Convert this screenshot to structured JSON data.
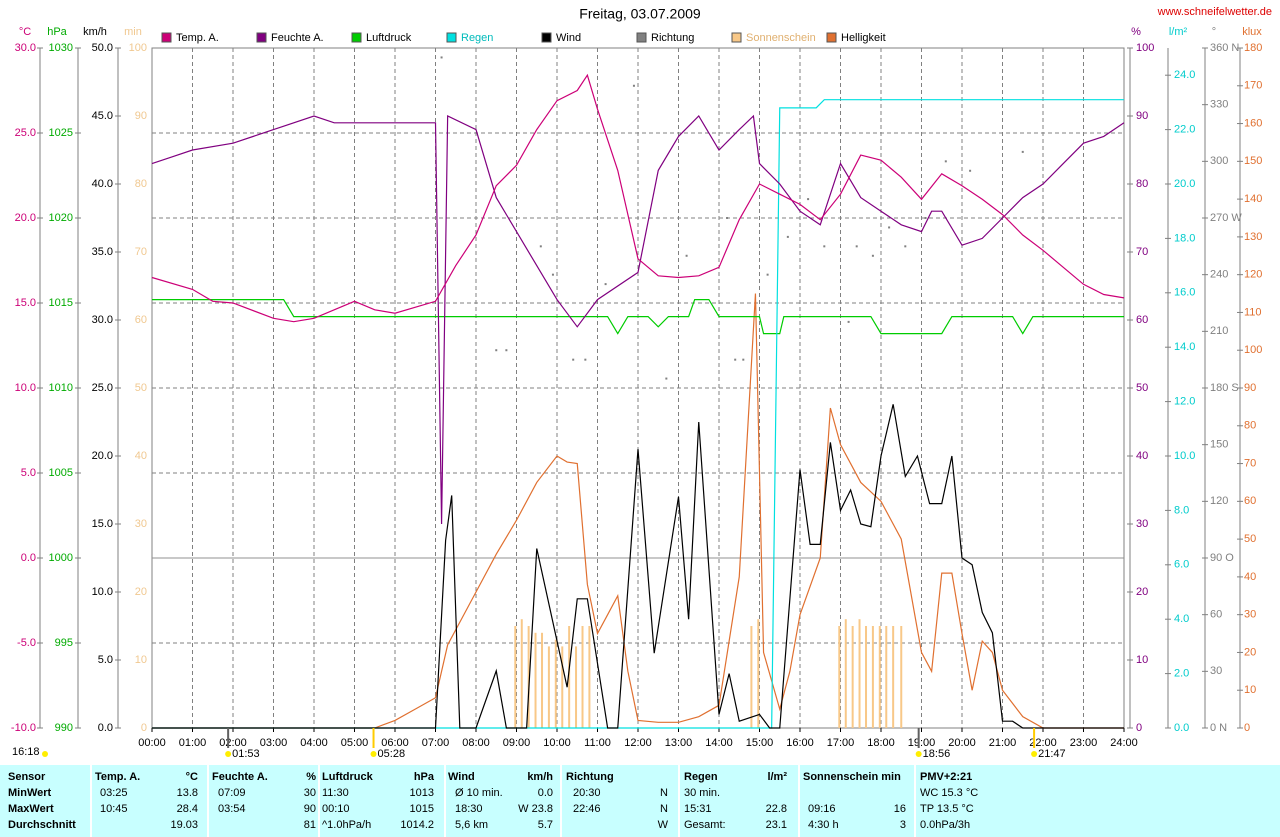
{
  "chart_data": {
    "type": "line",
    "title": "Freitag, 03.07.2009",
    "source": "www.schneifelwetter.de",
    "xlim": [
      0,
      24
    ],
    "xticks": [
      {
        "value": 0,
        "label": "00:00"
      },
      {
        "value": 1,
        "label": "01:00"
      },
      {
        "value": 2,
        "label": "02:00"
      },
      {
        "value": 3,
        "label": "03:00"
      },
      {
        "value": 4,
        "label": "04:00"
      },
      {
        "value": 5,
        "label": "05:00"
      },
      {
        "value": 6,
        "label": "06:00"
      },
      {
        "value": 7,
        "label": "07:00"
      },
      {
        "value": 8,
        "label": "08:00"
      },
      {
        "value": 9,
        "label": "09:00"
      },
      {
        "value": 10,
        "label": "10:00"
      },
      {
        "value": 11,
        "label": "11:00"
      },
      {
        "value": 12,
        "label": "12:00"
      },
      {
        "value": 13,
        "label": "13:00"
      },
      {
        "value": 14,
        "label": "14:00"
      },
      {
        "value": 15,
        "label": "15:00"
      },
      {
        "value": 16,
        "label": "16:00"
      },
      {
        "value": 17,
        "label": "17:00"
      },
      {
        "value": 18,
        "label": "18:00"
      },
      {
        "value": 19,
        "label": "19:00"
      },
      {
        "value": 20,
        "label": "20:00"
      },
      {
        "value": 21,
        "label": "21:00"
      },
      {
        "value": 22,
        "label": "22:00"
      },
      {
        "value": 23,
        "label": "23:00"
      },
      {
        "value": 24,
        "label": "24:00"
      }
    ],
    "grid": true,
    "axes": [
      {
        "label": "°C",
        "color": "#cc0077",
        "ylim": [
          -10,
          30
        ],
        "yticks": [
          {
            "value": -10,
            "label": "-10.0"
          },
          {
            "value": -5,
            "label": "-5.0"
          },
          {
            "value": 0,
            "label": "0.0"
          },
          {
            "value": 5,
            "label": "5.0"
          },
          {
            "value": 10,
            "label": "10.0"
          },
          {
            "value": 15,
            "label": "15.0"
          },
          {
            "value": 20,
            "label": "20.0"
          },
          {
            "value": 25,
            "label": "25.0"
          },
          {
            "value": 30,
            "label": "30.0"
          }
        ]
      },
      {
        "label": "hPa",
        "color": "#00aa00",
        "ylim": [
          990,
          1030
        ],
        "yticks": [
          990,
          995,
          1000,
          1005,
          1010,
          1015,
          1020,
          1025,
          1030
        ]
      },
      {
        "label": "km/h",
        "color": "#000000",
        "ylim": [
          0,
          50
        ],
        "yticks": [
          {
            "value": 0,
            "label": "0.0"
          },
          {
            "value": 5,
            "label": "5.0"
          },
          {
            "value": 10,
            "label": "10.0"
          },
          {
            "value": 15,
            "label": "15.0"
          },
          {
            "value": 20,
            "label": "20.0"
          },
          {
            "value": 25,
            "label": "25.0"
          },
          {
            "value": 30,
            "label": "30.0"
          },
          {
            "value": 35,
            "label": "35.0"
          },
          {
            "value": 40,
            "label": "40.0"
          },
          {
            "value": 45,
            "label": "45.0"
          },
          {
            "value": 50,
            "label": "50.0"
          }
        ]
      },
      {
        "label": "min",
        "color": "#f0c890",
        "ylim": [
          0,
          100
        ],
        "yticks": [
          0,
          10,
          20,
          30,
          40,
          50,
          60,
          70,
          80,
          90,
          100
        ]
      },
      {
        "label": "%",
        "color": "#800080",
        "ylim": [
          0,
          100
        ],
        "yticks": [
          0,
          10,
          20,
          30,
          40,
          50,
          60,
          70,
          80,
          90,
          100
        ]
      },
      {
        "label": "l/m²",
        "color": "#00cccc",
        "ylim": [
          0,
          25
        ],
        "yticks": [
          {
            "value": 0,
            "label": "0.0"
          },
          {
            "value": 2,
            "label": "2.0"
          },
          {
            "value": 4,
            "label": "4.0"
          },
          {
            "value": 6,
            "label": "6.0"
          },
          {
            "value": 8,
            "label": "8.0"
          },
          {
            "value": 10,
            "label": "10.0"
          },
          {
            "value": 12,
            "label": "12.0"
          },
          {
            "value": 14,
            "label": "14.0"
          },
          {
            "value": 16,
            "label": "16.0"
          },
          {
            "value": 18,
            "label": "18.0"
          },
          {
            "value": 20,
            "label": "20.0"
          },
          {
            "value": 22,
            "label": "22.0"
          },
          {
            "value": 24,
            "label": "24.0"
          }
        ]
      },
      {
        "label": "°",
        "color": "#808080",
        "ylim": [
          0,
          360
        ],
        "yticks": [
          {
            "value": 0,
            "label": "0 N"
          },
          30,
          60,
          {
            "value": 90,
            "label": "90 O"
          },
          120,
          150,
          {
            "value": 180,
            "label": "180 S"
          },
          210,
          240,
          {
            "value": 270,
            "label": "270 W"
          },
          300,
          330,
          {
            "value": 360,
            "label": "360 N"
          }
        ]
      },
      {
        "label": "klux",
        "color": "#e07030",
        "ylim": [
          0,
          180
        ],
        "yticks": [
          0,
          10,
          20,
          30,
          40,
          50,
          60,
          70,
          80,
          90,
          100,
          110,
          120,
          130,
          140,
          150,
          160,
          170,
          180
        ]
      }
    ],
    "series": [
      {
        "name": "Temp. A.",
        "color": "#cc0077",
        "axis": 0,
        "style": "line",
        "x": [
          0,
          1,
          1.5,
          2,
          3,
          3.5,
          4,
          5,
          5.5,
          6,
          7,
          7.5,
          8,
          8.5,
          9,
          9.5,
          10,
          10.5,
          10.75,
          11,
          11.5,
          12,
          12.5,
          13,
          13.5,
          14,
          14.5,
          15,
          15.5,
          16,
          16.5,
          17,
          17.5,
          18,
          18.5,
          19,
          19.5,
          20,
          20.5,
          21,
          21.5,
          22,
          22.5,
          23,
          23.5,
          24
        ],
        "values": [
          16.5,
          15.8,
          15.1,
          15.0,
          14.1,
          13.9,
          14.1,
          15.1,
          14.6,
          14.4,
          15.1,
          17.2,
          19.0,
          21.9,
          23.1,
          25.2,
          26.9,
          27.5,
          28.4,
          26.4,
          22.8,
          17.6,
          16.6,
          16.5,
          16.6,
          17.1,
          19.9,
          22.0,
          21.4,
          20.8,
          19.9,
          21.4,
          23.7,
          23.4,
          22.4,
          21.1,
          22.6,
          21.9,
          21.1,
          20.2,
          19.0,
          18.1,
          17.1,
          16.1,
          15.5,
          15.3
        ]
      },
      {
        "name": "Feuchte A.",
        "color": "#800080",
        "axis": 4,
        "style": "line",
        "x": [
          0,
          0.5,
          1,
          2,
          3,
          4,
          4.5,
          5,
          7,
          7.15,
          7.3,
          8,
          8.5,
          9,
          9.5,
          10,
          10.5,
          11,
          12,
          12.5,
          13,
          13.5,
          14,
          14.5,
          14.85,
          15,
          15.5,
          16,
          16.5,
          17,
          17.5,
          18,
          18.5,
          19,
          19.25,
          19.5,
          20,
          20.5,
          21,
          21.5,
          22,
          22.5,
          23,
          23.5,
          24
        ],
        "values": [
          83,
          84,
          85,
          86,
          88,
          90,
          89,
          89,
          89,
          30,
          90,
          88,
          78,
          73,
          68,
          63,
          59,
          63,
          67,
          82,
          87,
          90,
          85,
          88,
          90,
          83,
          80,
          76,
          74,
          83,
          78,
          76,
          74,
          73,
          76,
          76,
          71,
          72,
          75,
          78,
          80,
          83,
          86,
          87,
          89
        ]
      },
      {
        "name": "Luftdruck",
        "color": "#00cc00",
        "axis": 1,
        "style": "line",
        "x": [
          0,
          3.25,
          3.5,
          11.25,
          11.5,
          11.75,
          12.25,
          12.5,
          12.75,
          13.25,
          13.4,
          13.75,
          14,
          15,
          15.1,
          15.5,
          15.6,
          17.75,
          18,
          19.5,
          19.75,
          21.25,
          21.5,
          21.75,
          24
        ],
        "values": [
          1015.2,
          1015.2,
          1014.2,
          1014.2,
          1013.2,
          1014.2,
          1014.2,
          1013.6,
          1014.2,
          1014.2,
          1015.2,
          1015.2,
          1014.2,
          1014.2,
          1013.2,
          1013.2,
          1014.2,
          1014.2,
          1013.2,
          1013.2,
          1014.2,
          1014.2,
          1013.2,
          1014.2,
          1014.2
        ]
      },
      {
        "name": "Regen",
        "color": "#00e0e0",
        "axis": 5,
        "style": "line",
        "x": [
          0,
          15.3,
          15.5,
          16.4,
          16.6,
          24
        ],
        "values": [
          0,
          0,
          22.8,
          22.8,
          23.1,
          23.1
        ]
      },
      {
        "name": "Wind",
        "color": "#000000",
        "axis": 2,
        "style": "line",
        "x": [
          0,
          7,
          7.25,
          7.4,
          7.6,
          8,
          8.5,
          8.75,
          9.25,
          9.5,
          10.25,
          10.5,
          10.75,
          11.25,
          11.5,
          12,
          12.4,
          13,
          13.25,
          13.5,
          14,
          14.25,
          14.5,
          15,
          15.25,
          15.5,
          16,
          16.25,
          16.5,
          16.75,
          17,
          17.25,
          17.5,
          17.75,
          18,
          18.3,
          18.6,
          18.9,
          19.2,
          19.5,
          19.75,
          20,
          20.25,
          20.5,
          20.75,
          21,
          21.25,
          21.5,
          24
        ],
        "values": [
          0,
          0,
          13.8,
          17.1,
          0,
          0,
          4.2,
          0,
          0,
          13.2,
          3,
          9.5,
          9.5,
          0,
          0,
          20.5,
          5.5,
          17,
          8,
          22.5,
          1,
          4,
          0.5,
          1,
          0,
          0,
          19,
          13.5,
          13.5,
          21,
          16,
          17.5,
          15,
          14.8,
          20,
          23.8,
          18.5,
          20,
          16.5,
          16.5,
          20,
          12.5,
          12,
          8.5,
          7,
          0.5,
          0.5,
          0,
          0
        ]
      },
      {
        "name": "Richtung",
        "color": "#808080",
        "axis": 6,
        "style": "dots",
        "x": [
          7.15,
          8.5,
          8.75,
          9.6,
          9.9,
          10.4,
          10.7,
          11.2,
          11.9,
          12.7,
          13.2,
          14.2,
          14.4,
          14.6,
          15.2,
          15.7,
          16.2,
          16.6,
          17.2,
          17.4,
          17.8,
          18.2,
          18.6,
          19.1,
          19.6,
          20.2,
          21,
          21.5
        ],
        "values": [
          355,
          200,
          200,
          255,
          240,
          195,
          195,
          235,
          340,
          185,
          250,
          270,
          195,
          195,
          240,
          260,
          280,
          255,
          215,
          255,
          250,
          265,
          255,
          270,
          300,
          295,
          5,
          305
        ]
      },
      {
        "name": "Sonnenschein",
        "color": "#f8c888",
        "axis": 3,
        "style": "bars",
        "x": [
          8.97,
          9.13,
          9.3,
          9.47,
          9.63,
          9.8,
          9.97,
          10.13,
          10.3,
          10.47,
          10.63,
          10.8,
          14.8,
          14.97,
          16.97,
          17.13,
          17.3,
          17.47,
          17.63,
          17.8,
          17.97,
          18.13,
          18.3,
          18.5
        ],
        "values": [
          15,
          16,
          15,
          14,
          14,
          12,
          13,
          12,
          15,
          12,
          15,
          15,
          15,
          16,
          15,
          16,
          15,
          16,
          15,
          15,
          15,
          15,
          15,
          15
        ]
      },
      {
        "name": "Helligkeit",
        "color": "#e07030",
        "axis": 7,
        "style": "line",
        "x": [
          0,
          5.5,
          6,
          6.5,
          7,
          7.3,
          7.6,
          8,
          8.5,
          9,
          9.5,
          10,
          10.25,
          10.5,
          10.75,
          11,
          11.25,
          11.5,
          11.75,
          12,
          12.5,
          13,
          13.5,
          14,
          14.5,
          14.9,
          15.1,
          15.5,
          15.75,
          16,
          16.5,
          16.75,
          17,
          17.5,
          18,
          18.5,
          19,
          19.25,
          19.5,
          19.75,
          20,
          20.25,
          20.5,
          20.75,
          21,
          21.5,
          22,
          24
        ],
        "values": [
          0,
          0,
          2,
          5,
          8,
          22,
          28,
          36,
          46,
          55,
          65,
          72,
          70.4,
          70,
          38,
          25,
          30,
          35,
          15,
          2,
          1.5,
          1.5,
          3,
          6,
          40,
          115,
          20,
          5,
          15,
          30,
          45,
          84.7,
          75,
          65,
          60,
          50,
          20,
          15,
          41,
          41,
          25,
          10,
          23,
          20,
          10,
          3,
          0,
          0
        ]
      }
    ],
    "annotations": [
      {
        "text": "01:53",
        "x": 1.88
      },
      {
        "text": "05:28",
        "x": 5.47
      },
      {
        "text": "18:56",
        "x": 18.93
      },
      {
        "text": "21:47",
        "x": 21.78
      }
    ],
    "moonrise": "16:18"
  },
  "table": {
    "header": [
      "Sensor",
      "Temp. A.",
      "°C",
      "Feuchte A.",
      "%",
      "Luftdruck",
      "hPa",
      "Wind",
      "km/h",
      "Richtung",
      "Regen",
      "l/m²",
      "Sonnenschein min",
      "PMV+2:21"
    ],
    "rows": [
      [
        "MinWert",
        "03:25",
        "13.8",
        "07:09",
        "30",
        "11:30",
        "1013",
        "Ø 10 min.",
        "0.0",
        "20:30",
        "N",
        "30 min.",
        null,
        null,
        null,
        "WC 15.3 °C"
      ],
      [
        "MaxWert",
        "10:45",
        "28.4",
        "03:54",
        "90",
        "00:10",
        "1015",
        "18:30",
        "W 23.8",
        "22:46",
        "N",
        "15:31",
        "22.8",
        "09:16",
        "16",
        "TP 13.5 °C"
      ],
      [
        "Durchschnitt",
        null,
        "19.03",
        null,
        "81",
        "^1.0hPa/h",
        "1014.2",
        "5,6 km",
        "5.7",
        null,
        "W",
        "Gesamt:",
        "23.1",
        "4:30 h",
        "3",
        "0.0hPa/3h"
      ]
    ]
  }
}
